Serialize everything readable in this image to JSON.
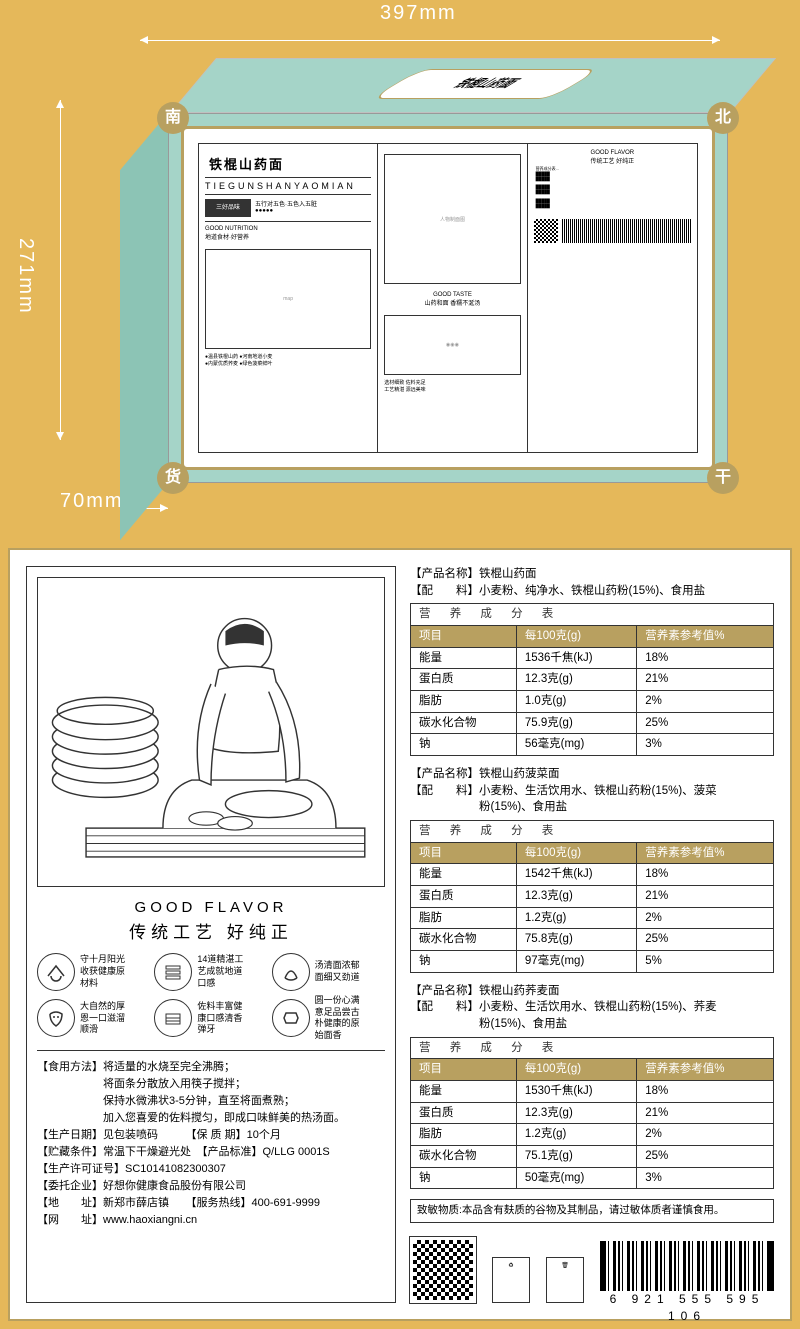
{
  "dimensions": {
    "width": "397mm",
    "height": "271mm",
    "depth": "70mm"
  },
  "box": {
    "topLabel": "铁棍山药面",
    "title": "铁棍山药面",
    "subtitle": "TIEGUNSHANYAOMIAN",
    "corners": {
      "nw": "南",
      "ne": "北",
      "se": "干",
      "sw": "货"
    }
  },
  "flavor": {
    "en": "GOOD FLAVOR",
    "cn": "传统工艺 好纯正"
  },
  "icons": [
    {
      "text": "守十月阳光\n收获健康原\n材料"
    },
    {
      "text": "14道精湛工\n艺成就地道\n口感"
    },
    {
      "text": "汤清面浓郁\n面细又劲道"
    },
    {
      "text": "大自然的厚\n恩一口滋溜\n顺滑"
    },
    {
      "text": "佐料丰富健\n康口感清香\n弹牙"
    },
    {
      "text": "圆一份心满\n意足品尝古\n朴健康的原\n始面香"
    }
  ],
  "infoLines": [
    "【食用方法】将适量的水烧至完全沸腾；",
    "　　　　　　将面条分散放入用筷子搅拌；",
    "　　　　　　保持水微沸状3-5分钟，直至将面煮熟；",
    "　　　　　　加入您喜爱的佐料搅匀，即成口味鲜美的热汤面。",
    "【生产日期】见包装喷码　　　【保 质 期】10个月",
    "【贮藏条件】常温下干燥避光处　【产品标准】Q/LLG 0001S",
    "【生产许可证号】SC10141082300307",
    "【委托企业】好想你健康食品股份有限公司",
    "【地　　址】新郑市薛店镇　　【服务热线】400-691-9999",
    "【网　　址】www.haoxiangni.cn"
  ],
  "products": [
    {
      "name": "【产品名称】铁棍山药面",
      "ingredients": "【配　　料】小麦粉、纯净水、铁棍山药粉(15%)、食用盐",
      "title": "营 养 成 分 表",
      "headers": [
        "项目",
        "每100克(g)",
        "营养素参考值%"
      ],
      "rows": [
        [
          "能量",
          "1536千焦(kJ)",
          "18%"
        ],
        [
          "蛋白质",
          "12.3克(g)",
          "21%"
        ],
        [
          "脂肪",
          "1.0克(g)",
          "2%"
        ],
        [
          "碳水化合物",
          "75.9克(g)",
          "25%"
        ],
        [
          "钠",
          "56毫克(mg)",
          "3%"
        ]
      ]
    },
    {
      "name": "【产品名称】铁棍山药菠菜面",
      "ingredients": "【配　　料】小麦粉、生活饮用水、铁棍山药粉(15%)、菠菜\n　　　　　　粉(15%)、食用盐",
      "title": "营 养 成 分 表",
      "headers": [
        "项目",
        "每100克(g)",
        "营养素参考值%"
      ],
      "rows": [
        [
          "能量",
          "1542千焦(kJ)",
          "18%"
        ],
        [
          "蛋白质",
          "12.3克(g)",
          "21%"
        ],
        [
          "脂肪",
          "1.2克(g)",
          "2%"
        ],
        [
          "碳水化合物",
          "75.8克(g)",
          "25%"
        ],
        [
          "钠",
          "97毫克(mg)",
          "5%"
        ]
      ]
    },
    {
      "name": "【产品名称】铁棍山药荞麦面",
      "ingredients": "【配　　料】小麦粉、生活饮用水、铁棍山药粉(15%)、荞麦\n　　　　　　粉(15%)、食用盐",
      "title": "营 养 成 分 表",
      "headers": [
        "项目",
        "每100克(g)",
        "营养素参考值%"
      ],
      "rows": [
        [
          "能量",
          "1530千焦(kJ)",
          "18%"
        ],
        [
          "蛋白质",
          "12.3克(g)",
          "21%"
        ],
        [
          "脂肪",
          "1.2克(g)",
          "2%"
        ],
        [
          "碳水化合物",
          "75.1克(g)",
          "25%"
        ],
        [
          "钠",
          "50毫克(mg)",
          "3%"
        ]
      ]
    }
  ],
  "allergen": "致敏物质:本品含有麸质的谷物及其制品，请过敏体质者谨慎食用。",
  "barcode": "6 921 555 595 106",
  "colors": {
    "gold": "#b8a060",
    "mint": "#a5d4c8",
    "bg": "#e5b85a"
  }
}
